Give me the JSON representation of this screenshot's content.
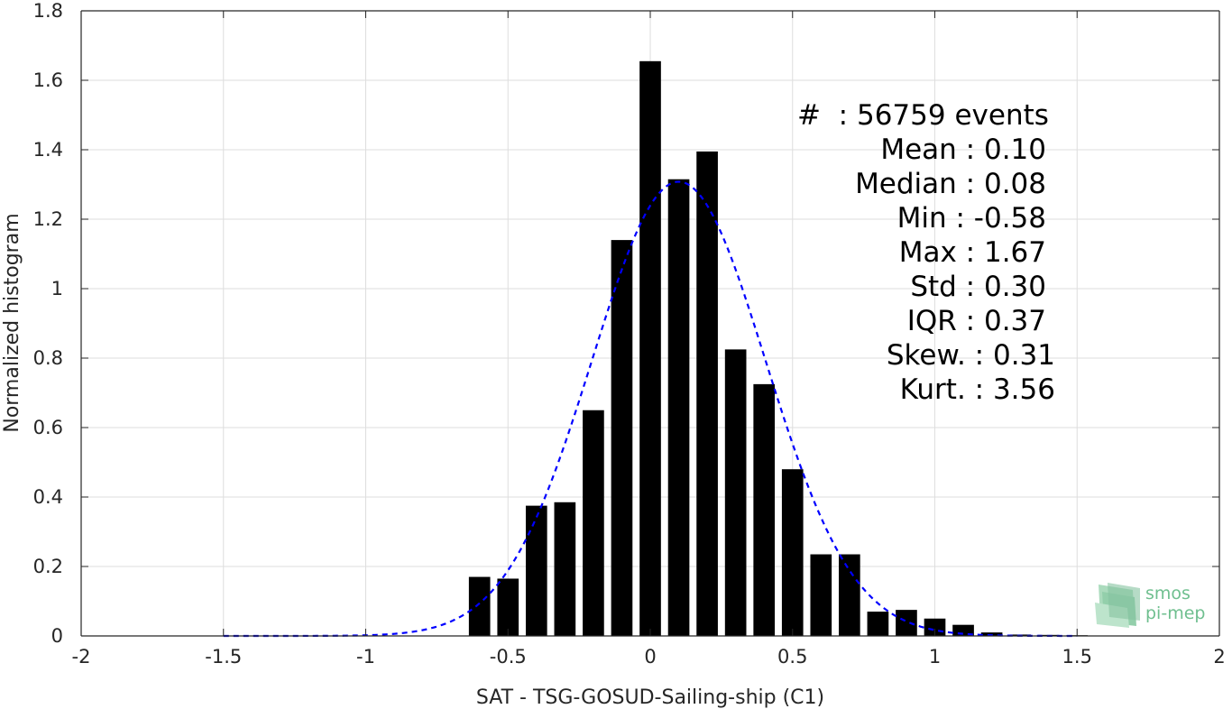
{
  "chart_data": {
    "type": "bar",
    "xlabel": "SAT - TSG-GOSUD-Sailing-ship (C1)",
    "ylabel": "Normalized histogram",
    "xlim": [
      -2,
      2
    ],
    "ylim": [
      0,
      1.8
    ],
    "x_ticks": [
      -2,
      -1.5,
      -1,
      -0.5,
      0,
      0.5,
      1,
      1.5,
      2
    ],
    "x_tick_labels": [
      "-2",
      "-1.5",
      "-1",
      "-0.5",
      "0",
      "0.5",
      "1",
      "1.5",
      "2"
    ],
    "y_ticks": [
      0,
      0.2,
      0.4,
      0.6,
      0.8,
      1,
      1.2,
      1.4,
      1.6,
      1.8
    ],
    "y_tick_labels": [
      "0",
      "0.2",
      "0.4",
      "0.6",
      "0.8",
      "1",
      "1.2",
      "1.4",
      "1.6",
      "1.8"
    ],
    "grid": true,
    "bin_width": 0.1,
    "bar_color": "#000000",
    "fit_color": "#0000ff",
    "bins": [
      {
        "x": -0.6,
        "value": 0.17
      },
      {
        "x": -0.5,
        "value": 0.165
      },
      {
        "x": -0.4,
        "value": 0.375
      },
      {
        "x": -0.3,
        "value": 0.385
      },
      {
        "x": -0.2,
        "value": 0.65
      },
      {
        "x": -0.1,
        "value": 1.14
      },
      {
        "x": 0.0,
        "value": 1.655
      },
      {
        "x": 0.1,
        "value": 1.315
      },
      {
        "x": 0.2,
        "value": 1.395
      },
      {
        "x": 0.3,
        "value": 0.825
      },
      {
        "x": 0.4,
        "value": 0.725
      },
      {
        "x": 0.5,
        "value": 0.48
      },
      {
        "x": 0.6,
        "value": 0.235
      },
      {
        "x": 0.7,
        "value": 0.235
      },
      {
        "x": 0.8,
        "value": 0.07
      },
      {
        "x": 0.9,
        "value": 0.075
      },
      {
        "x": 1.0,
        "value": 0.05
      },
      {
        "x": 1.1,
        "value": 0.032
      },
      {
        "x": 1.2,
        "value": 0.01
      },
      {
        "x": 1.3,
        "value": 0.004
      },
      {
        "x": 1.4,
        "value": 0.003
      },
      {
        "x": 1.5,
        "value": 0.002
      }
    ],
    "fit": {
      "type": "normal",
      "mean": 0.1,
      "std": 0.305,
      "x_range": [
        -1.5,
        1.5
      ],
      "style": "dashed"
    },
    "stats_lines": [
      "#  : 56759 events",
      "Mean : 0.10",
      "Median : 0.08",
      "Min : -0.58",
      "Max : 1.67",
      "Std : 0.30",
      "IQR : 0.37",
      "Skew. : 0.31",
      "Kurt. : 3.56"
    ]
  },
  "logo": {
    "line1": "smos",
    "line2": "pi-mep",
    "color": "#6fbf8f"
  }
}
